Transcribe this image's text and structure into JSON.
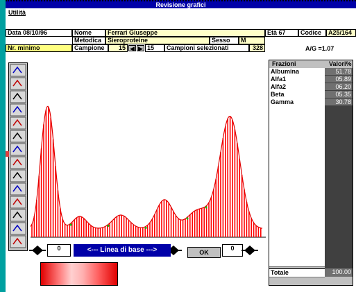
{
  "header": {
    "title": "Revisione grafici"
  },
  "menu": [
    "Utilità"
  ],
  "fields": {
    "date": "Data 08/10/96",
    "name_label": "Nome",
    "name": "Ferrari Giuseppe",
    "age": "Età 67",
    "code_label": "Codice",
    "code": "A25/164",
    "method_label": "Metodica",
    "method": "Sieroproteine",
    "sex_label": "Sesso",
    "sex": "M",
    "min_label": "Nr. minimo",
    "sample_label": "Campione",
    "sample": "15",
    "sample2": "15",
    "selected_label": "Campioni selezionati",
    "selected": "328",
    "ag_ratio": "A/G =1.07"
  },
  "table": {
    "header": [
      "Frazioni",
      "Valori%"
    ],
    "rows": [
      [
        "Albumina",
        "51.78"
      ],
      [
        "Alfa1",
        "05.89"
      ],
      [
        "Alfa2",
        "06.20"
      ],
      [
        "Beta",
        "05.35"
      ],
      [
        "Gamma",
        "30.78"
      ]
    ],
    "total": [
      "Totale",
      "100.00"
    ]
  },
  "controls": {
    "left": "0",
    "baseline": "<--- Linea di base --->",
    "ok": "OK",
    "right": "0"
  }
}
